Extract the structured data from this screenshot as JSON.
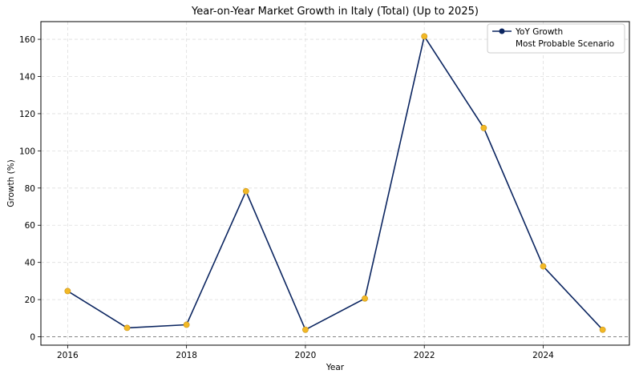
{
  "chart_data": {
    "type": "line",
    "title": "Year-on-Year Market Growth in Italy (Total) (Up to 2025)",
    "xlabel": "Year",
    "ylabel": "Growth (%)",
    "x": [
      2016,
      2017,
      2018,
      2019,
      2020,
      2021,
      2022,
      2023,
      2024,
      2025
    ],
    "series": [
      {
        "name": "YoY Growth",
        "values": [
          24.6,
          4.8,
          6.5,
          78.3,
          3.8,
          20.6,
          161.6,
          112.3,
          37.9,
          3.8
        ],
        "color": "#0b2560",
        "marker_color": "#f2b825"
      }
    ],
    "legend": [
      "YoY Growth",
      "Most Probable Scenario"
    ],
    "legend_position": "top-right",
    "xlim": [
      2015.55,
      2025.45
    ],
    "ylim": [
      -4.5,
      169.5
    ],
    "xticks": [
      2016,
      2018,
      2020,
      2022,
      2024
    ],
    "yticks": [
      0,
      20,
      40,
      60,
      80,
      100,
      120,
      140,
      160
    ],
    "grid": true,
    "zero_line": true
  }
}
